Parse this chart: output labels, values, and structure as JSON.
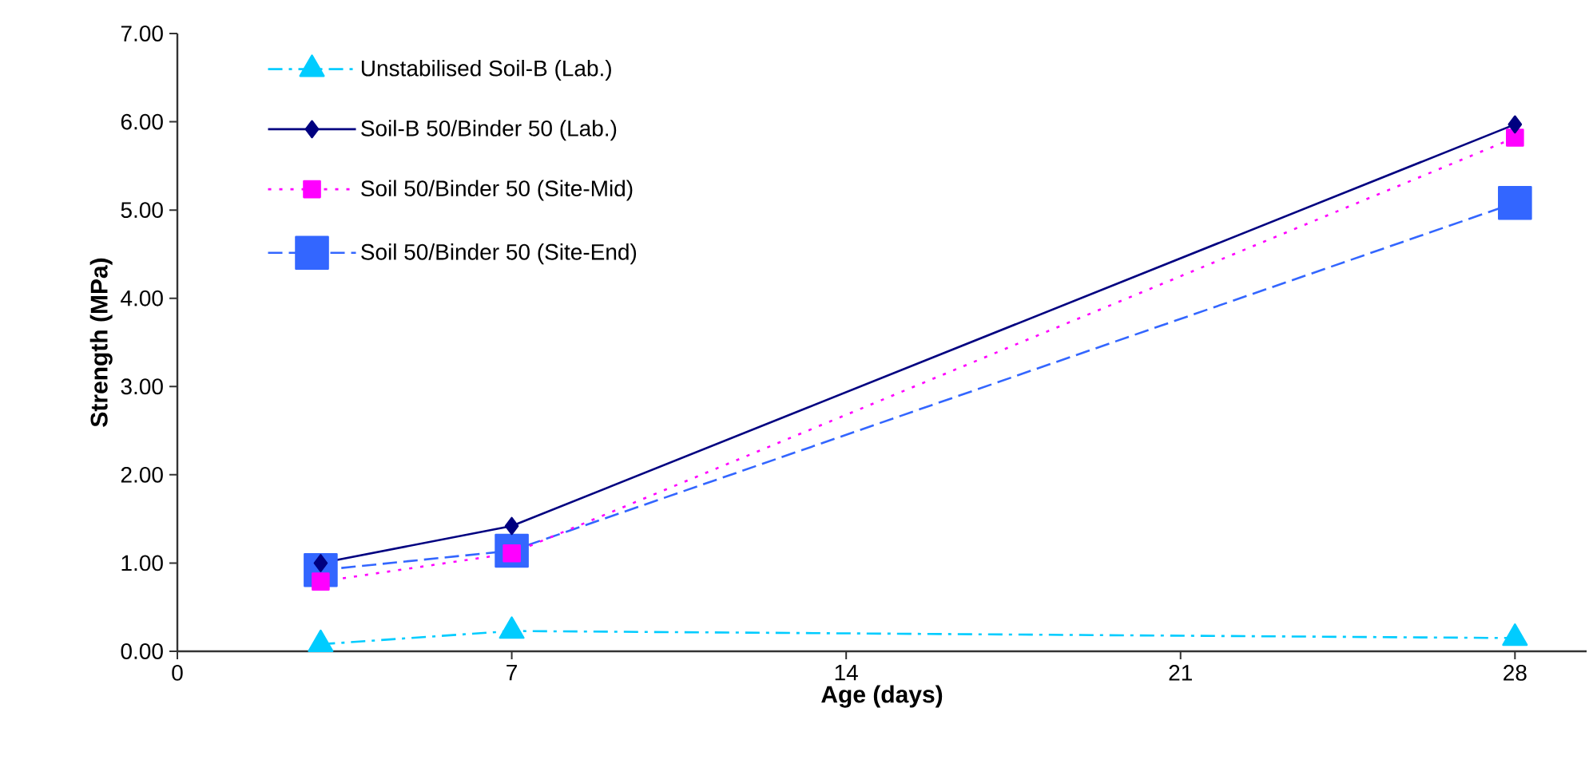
{
  "chart_data": {
    "type": "line",
    "xlabel": "Age (days)",
    "ylabel": "Strength (MPa)",
    "x": [
      3,
      7,
      28
    ],
    "series": [
      {
        "name": "Unstabilised Soil-B (Lab.)",
        "color": "#00ccff",
        "marker": "triangle",
        "line_style": "dashdotted",
        "values": [
          0.08,
          0.23,
          0.15
        ]
      },
      {
        "name": "Soil-B 50/Binder 50 (Lab.)",
        "color": "#000080",
        "marker": "diamond",
        "line_style": "solid",
        "values": [
          1.0,
          1.42,
          5.97
        ]
      },
      {
        "name": "Soil 50/Binder 50 (Site-Mid)",
        "color": "#ff00ff",
        "marker": "square",
        "line_style": "dotted",
        "values": [
          0.79,
          1.11,
          5.82
        ]
      },
      {
        "name": "Soil 50/Binder 50 (Site-End)",
        "color": "#3366ff",
        "marker": "square",
        "line_style": "dashed",
        "values": [
          0.92,
          1.14,
          5.08
        ]
      }
    ],
    "xlim": [
      0,
      29.5
    ],
    "xticks": [
      0,
      7,
      14,
      21,
      28
    ],
    "ylim": [
      0,
      7
    ],
    "yticks": [
      {
        "value": 0,
        "label": "0.00"
      },
      {
        "value": 1,
        "label": "1.00"
      },
      {
        "value": 2,
        "label": "2.00"
      },
      {
        "value": 3,
        "label": "3.00"
      },
      {
        "value": 4,
        "label": "4.00"
      },
      {
        "value": 5,
        "label": "5.00"
      },
      {
        "value": 6,
        "label": "6.00"
      },
      {
        "value": 7,
        "label": "7.00"
      }
    ],
    "legend": "top left",
    "grid": false
  }
}
